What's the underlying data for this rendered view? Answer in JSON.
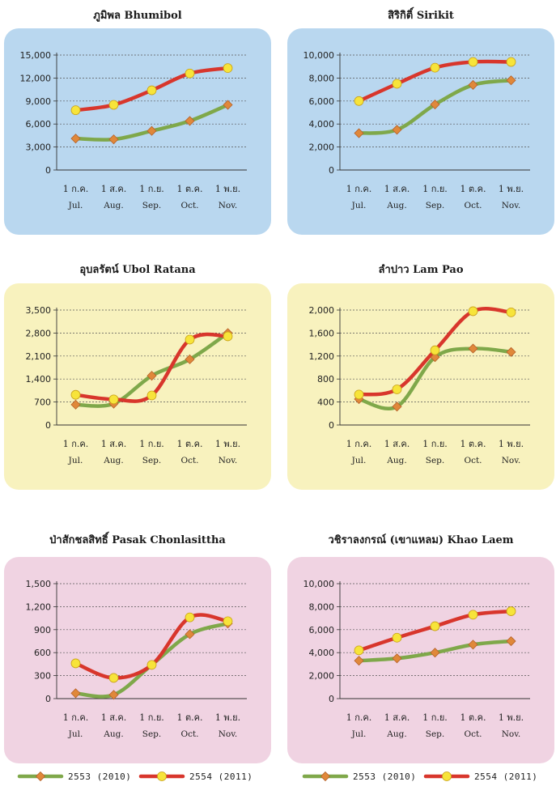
{
  "chart_data": [
    {
      "type": "line",
      "title": "ภูมิพล  Bhumibol",
      "categories": [
        "1 ก.ค.",
        "1 ส.ค.",
        "1 ก.ย.",
        "1 ต.ค.",
        "1 พ.ย."
      ],
      "categories_en": [
        "Jul.",
        "Aug.",
        "Sep.",
        "Oct.",
        "Nov."
      ],
      "ylim": [
        0,
        15000
      ],
      "yticks": [
        0,
        3000,
        6000,
        9000,
        12000,
        15000
      ],
      "yticklabels": [
        "0",
        "3,000",
        "6,000",
        "9,000",
        "12,000",
        "15,000"
      ],
      "series": [
        {
          "name": "2553 (2010)",
          "values": [
            4100,
            4000,
            5100,
            6400,
            8500
          ]
        },
        {
          "name": "2554 (2011)",
          "values": [
            7800,
            8500,
            10400,
            12600,
            13300
          ]
        }
      ]
    },
    {
      "type": "line",
      "title": "สิริกิติ์  Sirikit",
      "categories": [
        "1 ก.ค.",
        "1 ส.ค.",
        "1 ก.ย.",
        "1 ต.ค.",
        "1 พ.ย."
      ],
      "categories_en": [
        "Jul.",
        "Aug.",
        "Sep.",
        "Oct.",
        "Nov."
      ],
      "ylim": [
        0,
        10000
      ],
      "yticks": [
        0,
        2000,
        4000,
        6000,
        8000,
        10000
      ],
      "yticklabels": [
        "0",
        "2,000",
        "4,000",
        "6,000",
        "8,000",
        "10,000"
      ],
      "series": [
        {
          "name": "2553 (2010)",
          "values": [
            3200,
            3500,
            5700,
            7400,
            7800
          ]
        },
        {
          "name": "2554 (2011)",
          "values": [
            6000,
            7500,
            8900,
            9400,
            9400
          ]
        }
      ]
    },
    {
      "type": "line",
      "title": "อุบลรัตน์  Ubol Ratana",
      "categories": [
        "1 ก.ค.",
        "1 ส.ค.",
        "1 ก.ย.",
        "1 ต.ค.",
        "1 พ.ย."
      ],
      "categories_en": [
        "Jul.",
        "Aug.",
        "Sep.",
        "Oct.",
        "Nov."
      ],
      "ylim": [
        0,
        3500
      ],
      "yticks": [
        0,
        700,
        1400,
        2100,
        2800,
        3500
      ],
      "yticklabels": [
        "0",
        "700",
        "1,400",
        "2,100",
        "2,800",
        "3,500"
      ],
      "series": [
        {
          "name": "2553 (2010)",
          "values": [
            620,
            650,
            1500,
            2000,
            2800
          ]
        },
        {
          "name": "2554 (2011)",
          "values": [
            920,
            780,
            900,
            2600,
            2700
          ]
        }
      ]
    },
    {
      "type": "line",
      "title": "ลำปาว  Lam Pao",
      "categories": [
        "1 ก.ค.",
        "1 ส.ค.",
        "1 ก.ย.",
        "1 ต.ค.",
        "1 พ.ย."
      ],
      "categories_en": [
        "Jul.",
        "Aug.",
        "Sep.",
        "Oct.",
        "Nov."
      ],
      "ylim": [
        0,
        2000
      ],
      "yticks": [
        0,
        400,
        800,
        1200,
        1600,
        2000
      ],
      "yticklabels": [
        "0",
        "400",
        "800",
        "1,200",
        "1,600",
        "2,000"
      ],
      "series": [
        {
          "name": "2553 (2010)",
          "values": [
            450,
            320,
            1180,
            1330,
            1270
          ]
        },
        {
          "name": "2554 (2011)",
          "values": [
            530,
            620,
            1300,
            1980,
            1960
          ]
        }
      ]
    },
    {
      "type": "line",
      "title": "ป่าสักชลสิทธิ์  Pasak Chonlasittha",
      "categories": [
        "1 ก.ค.",
        "1 ส.ค.",
        "1 ก.ย.",
        "1 ต.ค.",
        "1 พ.ย."
      ],
      "categories_en": [
        "Jul.",
        "Aug.",
        "Sep.",
        "Oct.",
        "Nov."
      ],
      "ylim": [
        0,
        1500
      ],
      "yticks": [
        0,
        300,
        600,
        900,
        1200,
        1500
      ],
      "yticklabels": [
        "0",
        "300",
        "600",
        "900",
        "1,200",
        "1,500"
      ],
      "series": [
        {
          "name": "2553 (2010)",
          "values": [
            70,
            50,
            440,
            840,
            980
          ]
        },
        {
          "name": "2554 (2011)",
          "values": [
            460,
            270,
            440,
            1060,
            1010
          ]
        }
      ]
    },
    {
      "type": "line",
      "title": "วชิราลงกรณ์ (เขาแหลม)  Khao Laem",
      "categories": [
        "1 ก.ค.",
        "1 ส.ค.",
        "1 ก.ย.",
        "1 ต.ค.",
        "1 พ.ย."
      ],
      "categories_en": [
        "Jul.",
        "Aug.",
        "Sep.",
        "Oct.",
        "Nov."
      ],
      "ylim": [
        0,
        10000
      ],
      "yticks": [
        0,
        2000,
        4000,
        6000,
        8000,
        10000
      ],
      "yticklabels": [
        "0",
        "2,000",
        "4,000",
        "6,000",
        "8,000",
        "10,000"
      ],
      "series": [
        {
          "name": "2553 (2010)",
          "values": [
            3300,
            3500,
            4000,
            4700,
            5000
          ]
        },
        {
          "name": "2554 (2011)",
          "values": [
            4200,
            5300,
            6300,
            7300,
            7600
          ]
        }
      ]
    }
  ],
  "legend": {
    "series_2553": "2553  (2010)",
    "series_2554": "2554  (2011)"
  },
  "colors": {
    "series_2553_line": "#7fa84a",
    "series_2553_marker": "#e0883a",
    "series_2554_line": "#d8362c",
    "series_2554_marker": "#f7e43a",
    "panel_blue": "#b9d7ef",
    "panel_yellow": "#f8f2be",
    "panel_pink": "#f0d3e2"
  }
}
